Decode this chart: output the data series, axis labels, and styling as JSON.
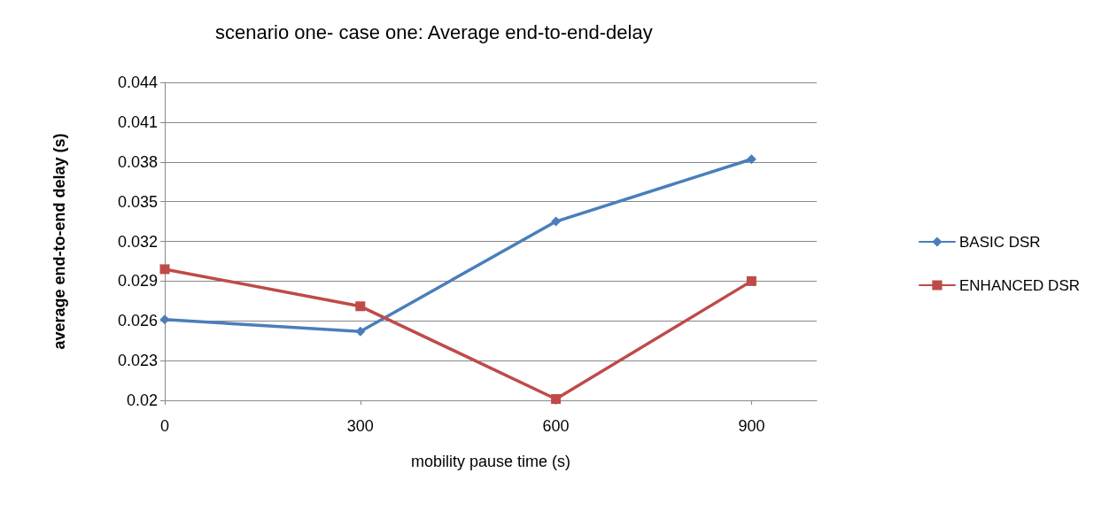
{
  "chart_data": {
    "type": "line",
    "title": "scenario one- case one: Average end-to-end-delay",
    "xlabel": "mobility pause time (s)",
    "ylabel": "average end-to-end delay (s)",
    "x": [
      0,
      300,
      600,
      900
    ],
    "xlim": [
      0,
      1000
    ],
    "xticks": [
      0,
      300,
      600,
      900
    ],
    "ylim": [
      0.02,
      0.044
    ],
    "yticks": [
      0.02,
      0.023,
      0.026,
      0.029,
      0.032,
      0.035,
      0.038,
      0.041,
      0.044
    ],
    "grid": "y",
    "legend": "right",
    "line_style": "solid",
    "series": [
      {
        "name": "BASIC DSR",
        "color": "#4a7ebb",
        "marker": "diamond",
        "values": [
          0.0261,
          0.0252,
          0.0335,
          0.0382
        ]
      },
      {
        "name": "ENHANCED DSR",
        "color": "#be4b48",
        "marker": "square",
        "values": [
          0.0299,
          0.0271,
          0.0201,
          0.029
        ]
      }
    ]
  }
}
